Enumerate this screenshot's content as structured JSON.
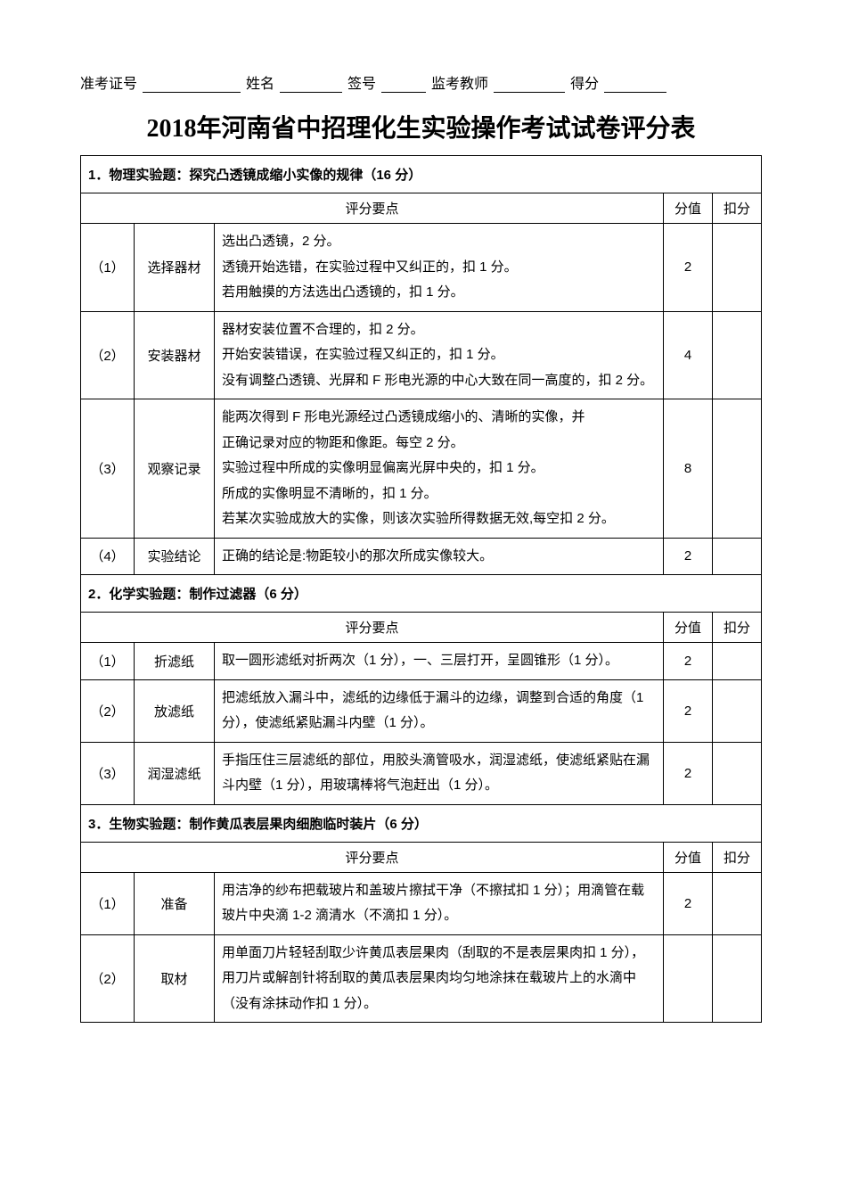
{
  "header_fields": {
    "exam_id": "准考证号",
    "name": "姓名",
    "sign": "签号",
    "invigilator": "监考教师",
    "score": "得分"
  },
  "underline_widths": {
    "exam_id": 110,
    "name": 70,
    "sign": 50,
    "invigilator": 80,
    "score": 70
  },
  "title": "2018年河南省中招理化生实验操作考试试卷评分表",
  "col_headers": {
    "criteria": "评分要点",
    "points": "分值",
    "deduct": "扣分"
  },
  "sections": [
    {
      "heading": "1．物理实验题：探究凸透镜成缩小实像的规律（16 分）",
      "rows": [
        {
          "idx": "（1）",
          "step": "选择器材",
          "desc": "选出凸透镜，2 分。\n透镜开始选错，在实验过程中又纠正的，扣 1 分。\n若用触摸的方法选出凸透镜的，扣 1 分。",
          "points": "2"
        },
        {
          "idx": "（2）",
          "step": "安装器材",
          "desc": "器材安装位置不合理的，扣 2 分。\n开始安装错误，在实验过程又纠正的，扣 1 分。\n没有调整凸透镜、光屏和 F 形电光源的中心大致在同一高度的，扣 2 分。",
          "points": "4"
        },
        {
          "idx": "（3）",
          "step": "观察记录",
          "desc": "能两次得到 F 形电光源经过凸透镜成缩小的、清晰的实像，并\n正确记录对应的物距和像距。每空 2 分。\n实验过程中所成的实像明显偏离光屏中央的，扣 1 分。\n所成的实像明显不清晰的，扣 1 分。\n若某次实验成放大的实像，则该次实验所得数据无效,每空扣 2 分。",
          "points": "8"
        },
        {
          "idx": "（4）",
          "step": "实验结论",
          "desc": "正确的结论是:物距较小的那次所成实像较大。",
          "points": "2"
        }
      ]
    },
    {
      "heading": "2．化学实验题：制作过滤器（6 分）",
      "rows": [
        {
          "idx": "（1）",
          "step": "折滤纸",
          "desc": "取一圆形滤纸对折两次（1 分），一、三层打开，呈圆锥形（1 分）。",
          "points": "2"
        },
        {
          "idx": "（2）",
          "step": "放滤纸",
          "desc": "把滤纸放入漏斗中，滤纸的边缘低于漏斗的边缘，调整到合适的角度（1 分），使滤纸紧贴漏斗内壁（1 分）。",
          "points": "2"
        },
        {
          "idx": "（3）",
          "step": "润湿滤纸",
          "desc": "手指压住三层滤纸的部位，用胶头滴管吸水，润湿滤纸，使滤纸紧贴在漏斗内壁（1 分），用玻璃棒将气泡赶出（1 分）。",
          "points": "2"
        }
      ]
    },
    {
      "heading": "3．生物实验题：制作黄瓜表层果肉细胞临时装片（6 分）",
      "rows": [
        {
          "idx": "（1）",
          "step": "准备",
          "desc": "用洁净的纱布把载玻片和盖玻片擦拭干净（不擦拭扣  1 分）；用滴管在载玻片中央滴 1-2 滴清水（不滴扣 1 分）。",
          "points": "2"
        },
        {
          "idx": "（2）",
          "step": "取材",
          "desc": "用单面刀片轻轻刮取少许黄瓜表层果肉（刮取的不是表层果肉扣  1 分），用刀片或解剖针将刮取的黄瓜表层果肉均匀地涂抹在载玻片上的水滴中（没有涂抹动作扣 1 分）。",
          "points": ""
        }
      ]
    }
  ]
}
